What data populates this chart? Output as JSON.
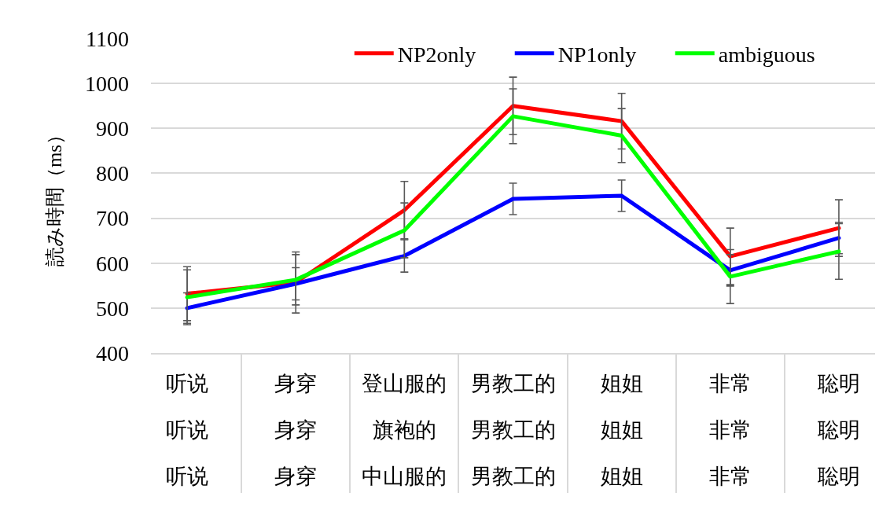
{
  "chart_data": {
    "type": "line",
    "ylabel": "読み時間（ms）",
    "categories": [
      [
        "听说",
        "听说",
        "听说"
      ],
      [
        "身穿",
        "身穿",
        "身穿"
      ],
      [
        "登山服的",
        "旗袍的",
        "中山服的"
      ],
      [
        "男教工的",
        "男教工的",
        "男教工的"
      ],
      [
        "姐姐",
        "姐姐",
        "姐姐"
      ],
      [
        "非常",
        "非常",
        "非常"
      ],
      [
        "聡明",
        "聡明",
        "聡明"
      ]
    ],
    "series": [
      {
        "name": "NP2only",
        "color": "#ff0000",
        "values": [
          532,
          557,
          718,
          950,
          916,
          615,
          678
        ],
        "errors": [
          60,
          68,
          64,
          64,
          62,
          63,
          63
        ]
      },
      {
        "name": "NP1only",
        "color": "#0000ff",
        "values": [
          500,
          554,
          616,
          743,
          750,
          584,
          656
        ],
        "errors": [
          34,
          36,
          36,
          35,
          35,
          35,
          35
        ]
      },
      {
        "name": "ambiguous",
        "color": "#00ff00",
        "values": [
          524,
          563,
          673,
          927,
          884,
          570,
          626
        ],
        "errors": [
          61,
          56,
          61,
          61,
          60,
          60,
          62
        ]
      }
    ],
    "ylim": [
      400,
      1100
    ],
    "yticks": [
      400,
      500,
      600,
      700,
      800,
      900,
      1000,
      1100
    ],
    "grid": "y",
    "legend": "top right",
    "marker": "none",
    "line_style": "solid"
  }
}
